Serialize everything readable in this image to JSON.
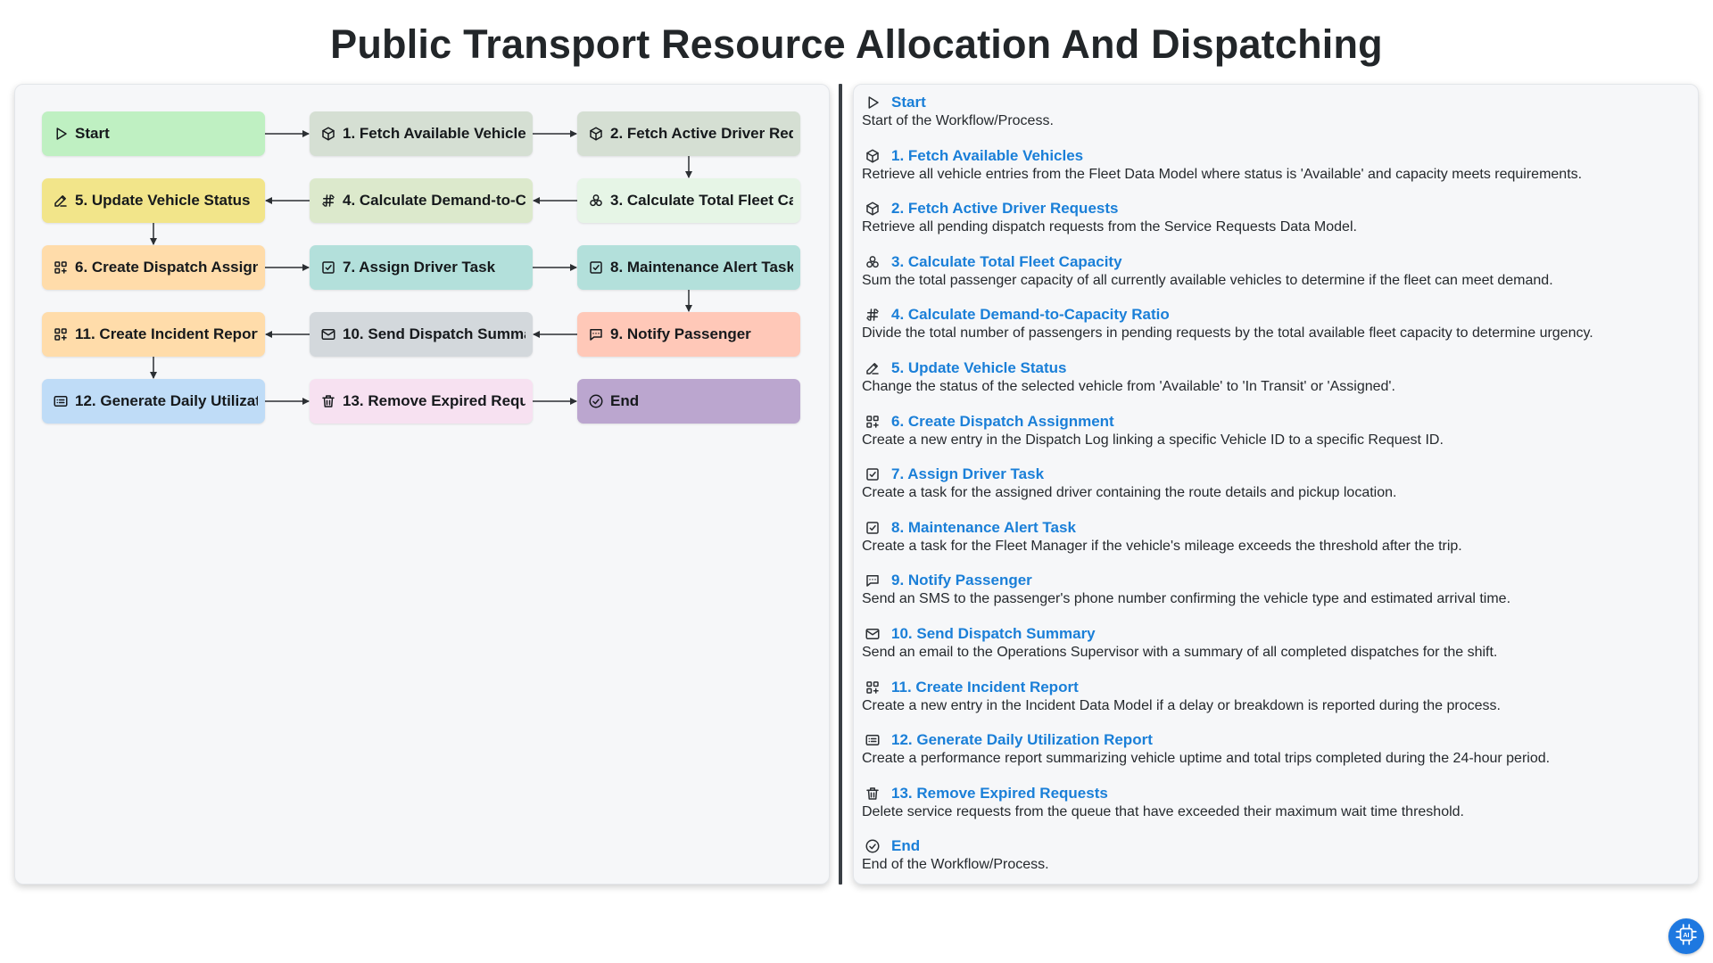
{
  "title": "Public Transport Resource Allocation And Dispatching",
  "nodes": {
    "start": {
      "label": "Start",
      "color": "#bff0c2",
      "icon": "play-icon"
    },
    "n1": {
      "label": "1. Fetch Available Vehicles",
      "color": "#d5dfd3",
      "icon": "cube-icon"
    },
    "n2": {
      "label": "2. Fetch Active Driver Requests",
      "color": "#d5dfd3",
      "icon": "cube-icon"
    },
    "n3": {
      "label": "3. Calculate Total Fleet Capacity",
      "color": "#e6f5e6",
      "icon": "circles-icon"
    },
    "n4": {
      "label": "4. Calculate Demand-to-Capacity Ratio",
      "color": "#dce9cc",
      "icon": "hash-icon"
    },
    "n5": {
      "label": "5. Update Vehicle Status",
      "color": "#f2e58a",
      "icon": "edit-icon"
    },
    "n6": {
      "label": "6. Create Dispatch Assignment",
      "color": "#ffdcaa",
      "icon": "grid-plus-icon"
    },
    "n7": {
      "label": "7. Assign Driver Task",
      "color": "#b3e0db",
      "icon": "checkbox-icon"
    },
    "n8": {
      "label": "8. Maintenance Alert Task",
      "color": "#b3e0db",
      "icon": "checkbox-icon"
    },
    "n9": {
      "label": "9. Notify Passenger",
      "color": "#ffc8b8",
      "icon": "message-icon"
    },
    "n10": {
      "label": "10. Send Dispatch Summary",
      "color": "#d3d8dc",
      "icon": "mail-icon"
    },
    "n11": {
      "label": "11. Create Incident Report",
      "color": "#ffdcaa",
      "icon": "grid-plus-icon"
    },
    "n12": {
      "label": "12. Generate Daily Utilization Report",
      "color": "#bfdcf7",
      "icon": "list-icon"
    },
    "n13": {
      "label": "13. Remove Expired Requests",
      "color": "#f7e1f1",
      "icon": "trash-icon"
    },
    "end": {
      "label": "End",
      "color": "#bba6cf",
      "icon": "check-circle-icon"
    }
  },
  "legend": [
    {
      "title": "Start",
      "desc": "Start of the Workflow/Process.",
      "icon": "play-icon"
    },
    {
      "title": "1. Fetch Available Vehicles",
      "desc": "Retrieve all vehicle entries from the Fleet Data Model where status is 'Available' and capacity meets requirements.",
      "icon": "cube-icon"
    },
    {
      "title": "2. Fetch Active Driver Requests",
      "desc": "Retrieve all pending dispatch requests from the Service Requests Data Model.",
      "icon": "cube-icon"
    },
    {
      "title": "3. Calculate Total Fleet Capacity",
      "desc": "Sum the total passenger capacity of all currently available vehicles to determine if the fleet can meet demand.",
      "icon": "circles-icon"
    },
    {
      "title": "4. Calculate Demand-to-Capacity Ratio",
      "desc": "Divide the total number of passengers in pending requests by the total available fleet capacity to determine urgency.",
      "icon": "hash-icon"
    },
    {
      "title": "5. Update Vehicle Status",
      "desc": "Change the status of the selected vehicle from 'Available' to 'In Transit' or 'Assigned'.",
      "icon": "edit-icon"
    },
    {
      "title": "6. Create Dispatch Assignment",
      "desc": "Create a new entry in the Dispatch Log linking a specific Vehicle ID to a specific Request ID.",
      "icon": "grid-plus-icon"
    },
    {
      "title": "7. Assign Driver Task",
      "desc": "Create a task for the assigned driver containing the route details and pickup location.",
      "icon": "checkbox-icon"
    },
    {
      "title": "8. Maintenance Alert Task",
      "desc": "Create a task for the Fleet Manager if the vehicle's mileage exceeds the threshold after the trip.",
      "icon": "checkbox-icon"
    },
    {
      "title": "9. Notify Passenger",
      "desc": "Send an SMS to the passenger's phone number confirming the vehicle type and estimated arrival time.",
      "icon": "message-icon"
    },
    {
      "title": "10. Send Dispatch Summary",
      "desc": "Send an email to the Operations Supervisor with a summary of all completed dispatches for the shift.",
      "icon": "mail-icon"
    },
    {
      "title": "11. Create Incident Report",
      "desc": "Create a new entry in the Incident Data Model if a delay or breakdown is reported during the process.",
      "icon": "grid-plus-icon"
    },
    {
      "title": "12. Generate Daily Utilization Report",
      "desc": "Create a performance report summarizing vehicle uptime and total trips completed during the 24-hour period.",
      "icon": "list-icon"
    },
    {
      "title": "13. Remove Expired Requests",
      "desc": "Delete service requests from the queue that have exceeded their maximum wait time threshold.",
      "icon": "trash-icon"
    },
    {
      "title": "End",
      "desc": "End of the Workflow/Process.",
      "icon": "check-circle-icon"
    }
  ],
  "badge": {
    "label": "AI",
    "icon": "ai-chip-icon"
  }
}
